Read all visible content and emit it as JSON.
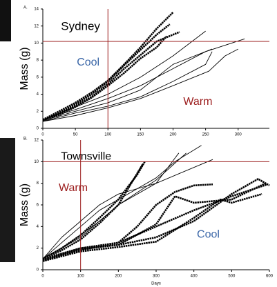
{
  "chart_data": [
    {
      "type": "line",
      "panel_label": "A.",
      "ylabel": "Mass (g)",
      "xlim": [
        0,
        348
      ],
      "xticks": [
        0,
        50,
        100,
        150,
        200,
        250,
        300
      ],
      "ylim": [
        0,
        14
      ],
      "yticks": [
        0,
        2,
        4,
        6,
        8,
        10,
        12,
        14
      ],
      "ref_x": 100,
      "ref_y": 10.2,
      "ref_color": "#9b1c1c",
      "annotations": [
        {
          "text": "Sydney",
          "color": "#000000"
        },
        {
          "text": "Cool",
          "color": "#3a66a7"
        },
        {
          "text": "Warm",
          "color": "#9b1c1c"
        }
      ],
      "series": [
        {
          "style": "bold",
          "color": "#000000",
          "x": [
            0,
            25,
            50,
            75,
            100,
            125,
            150,
            175,
            200
          ],
          "values": [
            1,
            2,
            3,
            4.2,
            5.6,
            7.5,
            9.5,
            11.7,
            13.6
          ]
        },
        {
          "style": "bold",
          "color": "#000000",
          "x": [
            0,
            25,
            50,
            75,
            100,
            125,
            150,
            175,
            195
          ],
          "values": [
            1,
            1.8,
            2.8,
            4,
            5.5,
            7.4,
            9.2,
            11,
            12.2
          ]
        },
        {
          "style": "bold",
          "color": "#000000",
          "x": [
            0,
            25,
            50,
            75,
            100,
            125,
            150,
            175,
            210
          ],
          "values": [
            0.9,
            1.7,
            2.6,
            3.7,
            5.2,
            7,
            8.6,
            10.2,
            11.3
          ]
        },
        {
          "style": "bold",
          "color": "#000000",
          "x": [
            0,
            25,
            50,
            75,
            100,
            125,
            150,
            175,
            190
          ],
          "values": [
            0.9,
            1.6,
            2.5,
            3.6,
            5,
            6.5,
            8.2,
            9.5,
            10.8
          ]
        },
        {
          "style": "thin",
          "color": "#000000",
          "x": [
            0,
            50,
            100,
            150,
            200,
            250
          ],
          "values": [
            1,
            2.5,
            4,
            6,
            8.5,
            11.4
          ]
        },
        {
          "style": "thin",
          "color": "#000000",
          "x": [
            0,
            50,
            100,
            150,
            200,
            250,
            310
          ],
          "values": [
            1,
            2.2,
            3.5,
            5,
            7,
            9,
            10.5
          ]
        },
        {
          "style": "thin",
          "color": "#000000",
          "x": [
            0,
            50,
            100,
            150,
            200,
            260
          ],
          "values": [
            0.9,
            2,
            3,
            4.5,
            7.5,
            9.3
          ]
        },
        {
          "style": "thin",
          "color": "#000000",
          "x": [
            0,
            50,
            100,
            150,
            200,
            250,
            260
          ],
          "values": [
            0.8,
            1.8,
            2.6,
            3.7,
            5.5,
            7.5,
            9
          ]
        },
        {
          "style": "thin",
          "color": "#000000",
          "x": [
            0,
            50,
            100,
            150,
            200,
            255,
            280,
            300
          ],
          "values": [
            0.8,
            1.5,
            2.4,
            3.5,
            5,
            6.7,
            8.5,
            9.3
          ]
        }
      ]
    },
    {
      "type": "line",
      "panel_label": "B.",
      "ylabel": "Mass (g)",
      "xlabel": "Days",
      "xlim": [
        0,
        600
      ],
      "xticks": [
        0,
        100,
        200,
        300,
        400,
        500,
        600
      ],
      "ylim": [
        0,
        12
      ],
      "yticks": [
        0,
        2,
        4,
        6,
        8,
        10,
        12
      ],
      "ref_x": 100,
      "ref_y": 10,
      "ref_color": "#9b1c1c",
      "annotations": [
        {
          "text": "Townsville",
          "color": "#000000"
        },
        {
          "text": "Warm",
          "color": "#9b1c1c"
        },
        {
          "text": "Cool",
          "color": "#3a66a7"
        }
      ],
      "series": [
        {
          "style": "bold",
          "color": "#000000",
          "x": [
            0,
            50,
            100,
            150,
            200,
            250,
            270
          ],
          "values": [
            1,
            2,
            3.2,
            4.8,
            6.5,
            8.8,
            10
          ]
        },
        {
          "style": "bold",
          "color": "#000000",
          "x": [
            0,
            50,
            100,
            150,
            200,
            265
          ],
          "values": [
            1,
            1.8,
            2.8,
            4.3,
            6,
            9.8
          ]
        },
        {
          "style": "thin",
          "color": "#000000",
          "x": [
            0,
            50,
            100,
            150,
            200,
            250,
            300,
            360
          ],
          "values": [
            1,
            3,
            4.5,
            6,
            7,
            7.5,
            8,
            10.8
          ]
        },
        {
          "style": "thin",
          "color": "#000000",
          "x": [
            0,
            50,
            100,
            150,
            200,
            250,
            300,
            350,
            420
          ],
          "values": [
            1,
            2.5,
            4,
            5.5,
            6.5,
            7.5,
            8.5,
            10,
            11.5
          ]
        },
        {
          "style": "thin",
          "color": "#000000",
          "x": [
            0,
            50,
            100,
            150,
            200,
            300,
            450
          ],
          "values": [
            1,
            2,
            3.2,
            4.5,
            6,
            8,
            10.2
          ]
        },
        {
          "style": "thin",
          "color": "#000000",
          "x": [
            0,
            100,
            200,
            300,
            380
          ],
          "values": [
            1,
            3,
            6,
            8.3,
            10.8
          ]
        },
        {
          "style": "bold",
          "color": "#000000",
          "x": [
            0,
            100,
            200,
            300,
            400,
            500,
            595
          ],
          "values": [
            0.9,
            1.8,
            2.5,
            4,
            5.5,
            6.8,
            7.9
          ]
        },
        {
          "style": "bold",
          "color": "#000000",
          "x": [
            0,
            100,
            200,
            300,
            350,
            400,
            500,
            590
          ],
          "values": [
            0.8,
            1.9,
            2.3,
            4.2,
            6.8,
            6.2,
            6.5,
            8
          ]
        },
        {
          "style": "bold",
          "color": "#000000",
          "x": [
            0,
            100,
            200,
            250,
            300,
            350,
            400,
            450
          ],
          "values": [
            1,
            2,
            2.5,
            4,
            6,
            7.2,
            7.8,
            7.9
          ]
        },
        {
          "style": "bold",
          "color": "#000000",
          "x": [
            0,
            100,
            200,
            300,
            400,
            500,
            570,
            600
          ],
          "values": [
            0.9,
            2,
            2.3,
            3,
            4.5,
            7,
            8.4,
            7.8
          ]
        },
        {
          "style": "bold",
          "color": "#000000",
          "x": [
            0,
            100,
            200,
            300,
            400,
            470,
            500,
            580
          ],
          "values": [
            0.8,
            1.7,
            2.1,
            2.6,
            4.8,
            6.5,
            6.2,
            7
          ]
        }
      ]
    }
  ]
}
